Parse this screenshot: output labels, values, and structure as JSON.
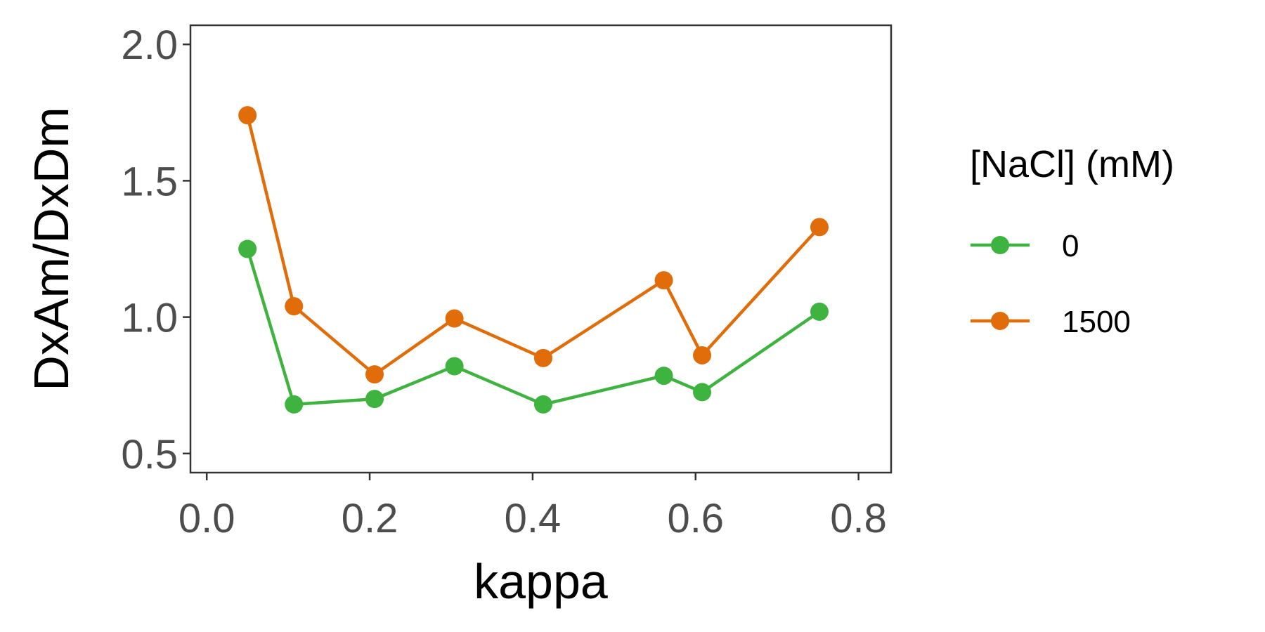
{
  "chart_data": {
    "type": "line",
    "title": "",
    "xlabel": "kappa",
    "ylabel": "DxAm/DxDm",
    "xlim": [
      -0.02,
      0.84
    ],
    "ylim": [
      0.43,
      2.07
    ],
    "xticks": [
      0.0,
      0.2,
      0.4,
      0.6,
      0.8
    ],
    "xtick_labels": [
      "0.0",
      "0.2",
      "0.4",
      "0.6",
      "0.8"
    ],
    "yticks": [
      0.5,
      1.0,
      1.5,
      2.0
    ],
    "ytick_labels": [
      "0.5",
      "1.0",
      "1.5",
      "2.0"
    ],
    "grid": false,
    "legend": {
      "title": "[NaCl] (mM)",
      "position": "right"
    },
    "series": [
      {
        "name": "0",
        "color": "#3fb33f",
        "x": [
          0.05,
          0.107,
          0.206,
          0.304,
          0.413,
          0.561,
          0.608,
          0.752
        ],
        "y": [
          1.25,
          0.68,
          0.7,
          0.82,
          0.68,
          0.785,
          0.725,
          1.02
        ]
      },
      {
        "name": "1500",
        "color": "#e06c0a",
        "x": [
          0.05,
          0.107,
          0.206,
          0.304,
          0.413,
          0.561,
          0.608,
          0.752
        ],
        "y": [
          1.74,
          1.04,
          0.79,
          0.995,
          0.85,
          1.135,
          0.86,
          1.33
        ]
      }
    ]
  }
}
